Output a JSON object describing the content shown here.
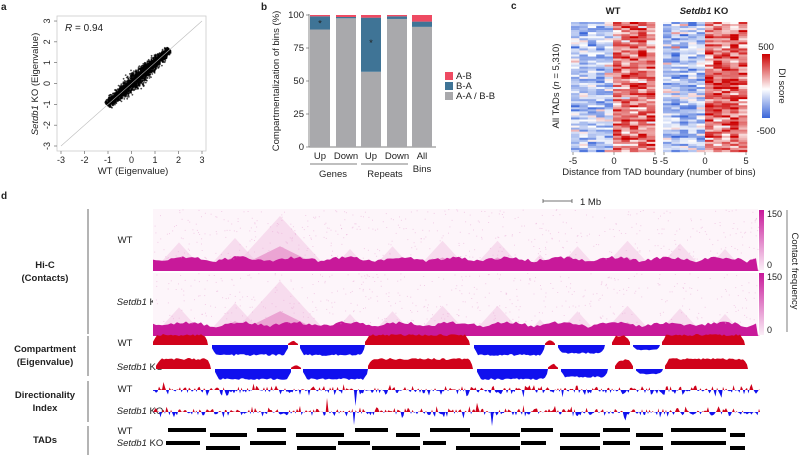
{
  "panels": {
    "a": "a",
    "b": "b",
    "c": "c",
    "d": "d"
  },
  "chart_data": [
    {
      "type": "scatter",
      "panel": "a",
      "xlabel": "WT (Eigenvalue)",
      "ylabel_italic": "Setdb1",
      "ylabel_rest": " KO (Eigenvalue)",
      "annotation_r": "R",
      "annotation_value": " = 0.94",
      "xlim": [
        -3,
        3
      ],
      "ylim": [
        -3,
        3
      ],
      "xticks": [
        "-3",
        "-2",
        "-1",
        "0",
        "1",
        "2",
        "3"
      ],
      "yticks": [
        "-3",
        "-2",
        "-1",
        "0",
        "1",
        "2",
        "3"
      ],
      "correlation": 0.94,
      "point_cloud": {
        "x_range": [
          -1,
          1.6
        ],
        "y_range": [
          -1,
          1.6
        ]
      }
    },
    {
      "type": "bar",
      "panel": "b",
      "stacked": true,
      "ylabel": "Compartmentalization of bins (%)",
      "ylim": [
        0,
        100
      ],
      "yticks": [
        "0",
        "25",
        "50",
        "75",
        "100"
      ],
      "categories": [
        "Up",
        "Down",
        "Up",
        "Down",
        "All Bins"
      ],
      "category_lines": [
        "Up",
        "Down",
        "Up",
        "Down",
        "All",
        "Bins"
      ],
      "groups": [
        "Genes",
        "Repeats"
      ],
      "series": [
        {
          "name": "A-A / B-B",
          "color": "#a9a9ac",
          "values": [
            89,
            97.5,
            57,
            97,
            91
          ]
        },
        {
          "name": "B-A",
          "color": "#3f7496",
          "values": [
            10,
            1,
            41,
            2,
            4
          ]
        },
        {
          "name": "A-B",
          "color": "#ee4a62",
          "values": [
            1,
            1.5,
            2,
            1,
            5
          ]
        }
      ],
      "significance": [
        "*",
        "",
        "*",
        "",
        ""
      ],
      "legend": [
        "A-B",
        "B-A",
        "A-A / B-B"
      ],
      "legend_position": "right"
    },
    {
      "type": "heatmap",
      "panel": "c",
      "titles": [
        "WT",
        "Setdb1 KO"
      ],
      "title_italic": "Setdb1",
      "title_rest": " KO",
      "ylabel_pre": "All TADs (",
      "ylabel_n": "n",
      "ylabel_post": " = 5,310)",
      "xlabel": "Distance from TAD boundary (number of bins)",
      "xticks": [
        "-5",
        "0",
        "5"
      ],
      "colorbar": {
        "label": "DI score",
        "max": "500",
        "min": "-500",
        "low_color": "#3a66d9",
        "high_color": "#cc0000"
      }
    },
    {
      "type": "genome-tracks",
      "panel": "d",
      "scale_bar": "1 Mb",
      "sections": [
        {
          "title1": "Hi-C",
          "title2": "(Contacts)"
        },
        {
          "title1": "Compartment",
          "title2": "(Eigenvalue)"
        },
        {
          "title1": "Directionality",
          "title2": "Index"
        },
        {
          "title1": "TADs",
          "title2": ""
        }
      ],
      "wt": "WT",
      "ko_italic": "Setdb1",
      "ko_rest": " KO",
      "contact_colorbar": {
        "label": "Contact frequency",
        "max": "150",
        "min": "0",
        "color": "#c8199a"
      },
      "compartment_colors": {
        "A": "#d0021b",
        "B": "#1010ee"
      }
    }
  ]
}
